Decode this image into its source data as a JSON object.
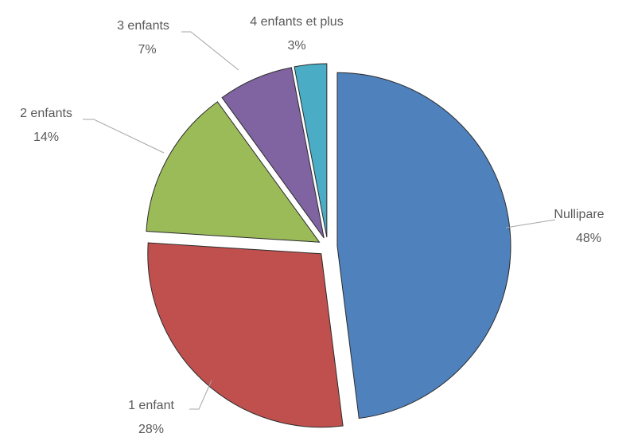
{
  "chart_data": {
    "type": "pie",
    "categories": [
      "Nullipare",
      "1 enfant",
      "2 enfants",
      "3 enfants",
      "4 enfants et plus"
    ],
    "values": [
      48,
      28,
      14,
      7,
      3
    ],
    "value_labels": [
      "48%",
      "28%",
      "14%",
      "7%",
      "3%"
    ],
    "colors": [
      "#4f81bd",
      "#c0504d",
      "#9bbb59",
      "#8064a2",
      "#4bacc6"
    ]
  }
}
